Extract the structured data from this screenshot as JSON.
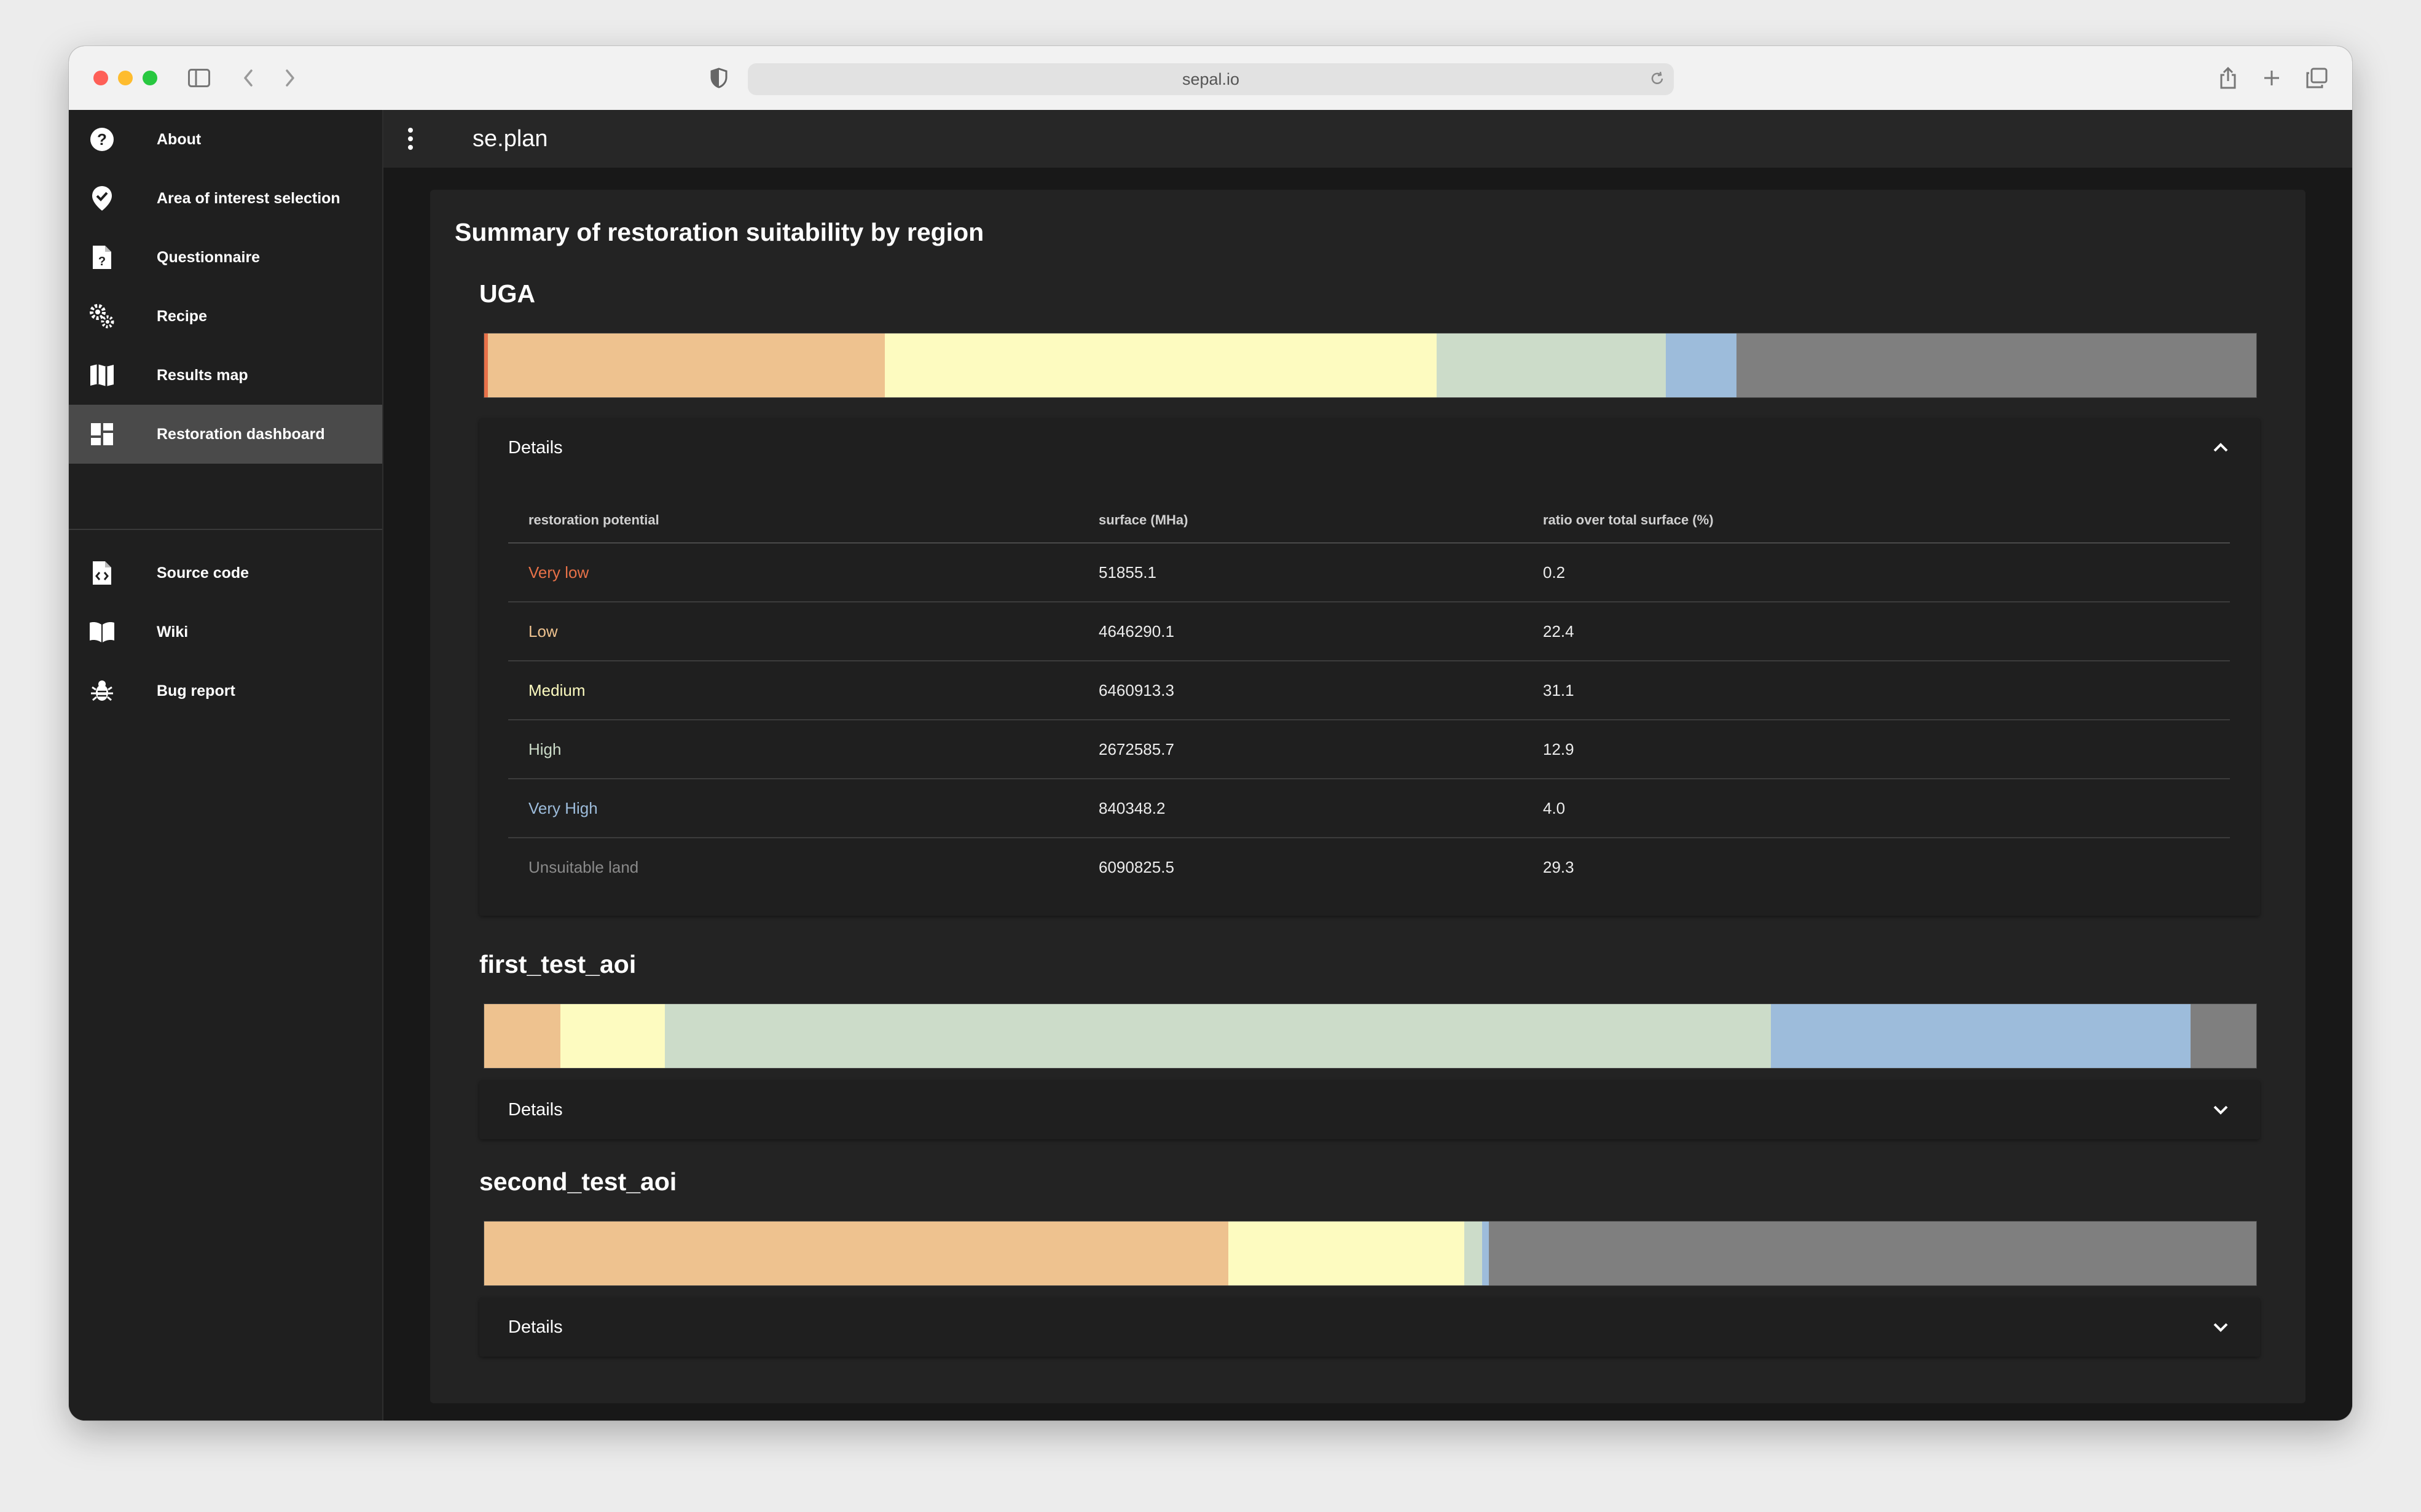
{
  "browser": {
    "url": "sepal.io"
  },
  "sidebar": {
    "items": [
      {
        "label": "About"
      },
      {
        "label": "Area of interest selection"
      },
      {
        "label": "Questionnaire"
      },
      {
        "label": "Recipe"
      },
      {
        "label": "Results map"
      },
      {
        "label": "Restoration dashboard"
      },
      {
        "label": "Source code"
      },
      {
        "label": "Wiki"
      },
      {
        "label": "Bug report"
      }
    ]
  },
  "app": {
    "title": "se.plan"
  },
  "dashboard": {
    "title": "Summary of restoration suitability by region",
    "category_colors": {
      "very_low": "#e77148",
      "low": "#eec28f",
      "medium": "#fdfbc0",
      "high": "#ccdcc9",
      "very_high": "#9dbcdb",
      "unsuitable": "#7f7f7f"
    },
    "table_headers": [
      "restoration potential",
      "surface (MHa)",
      "ratio over total surface (%)"
    ],
    "regions": [
      {
        "name": "UGA",
        "details_label": "Details",
        "expanded": true,
        "bar_ratios": [
          0.2,
          22.4,
          31.1,
          12.9,
          4.0,
          29.3
        ],
        "rows": [
          {
            "potential": "Very low",
            "surface": "51855.1",
            "ratio": "0.2"
          },
          {
            "potential": "Low",
            "surface": "4646290.1",
            "ratio": "22.4"
          },
          {
            "potential": "Medium",
            "surface": "6460913.3",
            "ratio": "31.1"
          },
          {
            "potential": "High",
            "surface": "2672585.7",
            "ratio": "12.9"
          },
          {
            "potential": "Very High",
            "surface": "840348.2",
            "ratio": "4.0"
          },
          {
            "potential": "Unsuitable land",
            "surface": "6090825.5",
            "ratio": "29.3"
          }
        ]
      },
      {
        "name": "first_test_aoi",
        "details_label": "Details",
        "expanded": false,
        "bar_ratios": [
          0,
          4.3,
          5.9,
          62.4,
          23.7,
          3.7
        ]
      },
      {
        "name": "second_test_aoi",
        "details_label": "Details",
        "expanded": false,
        "bar_ratios": [
          0,
          42.0,
          13.3,
          1.0,
          0.4,
          43.3
        ]
      }
    ]
  }
}
